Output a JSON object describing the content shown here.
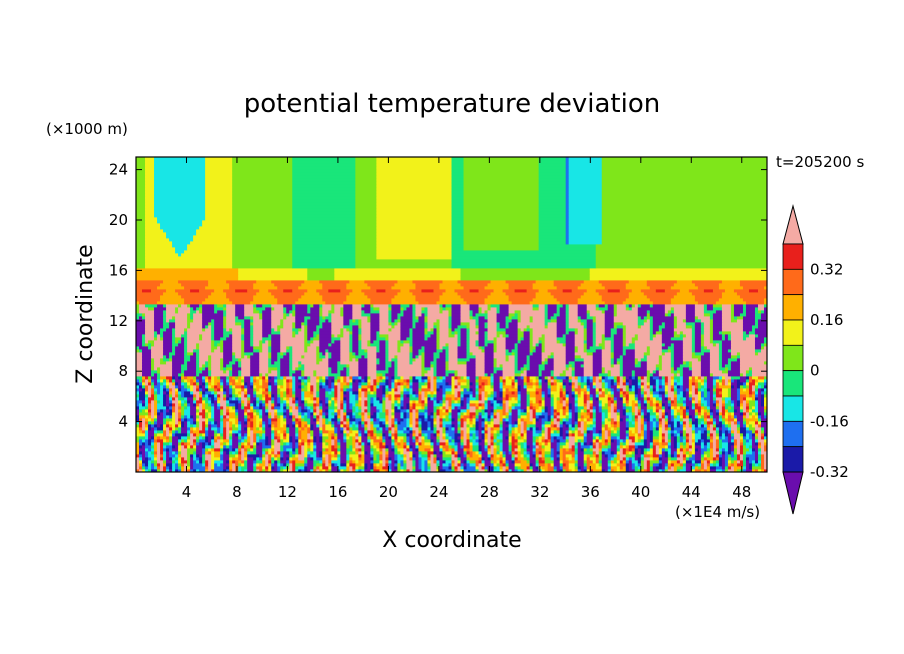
{
  "chart_data": {
    "type": "heatmap",
    "title": "potential temperature deviation",
    "xlabel": "X coordinate",
    "ylabel": "Z coordinate",
    "x_unit": "(×1E4 m/s)",
    "y_unit": "(×1000 m)",
    "time_label": "t=205200 s",
    "xlim": [
      0,
      50
    ],
    "ylim": [
      0,
      25
    ],
    "x_ticks": [
      4,
      8,
      12,
      16,
      20,
      24,
      28,
      32,
      36,
      40,
      44,
      48
    ],
    "y_ticks": [
      4,
      8,
      12,
      16,
      20,
      24
    ],
    "x_tick_labels": [
      "4",
      "8",
      "12",
      "16",
      "20",
      "24",
      "28",
      "32",
      "36",
      "40",
      "44",
      "48"
    ],
    "y_tick_labels": [
      "4",
      "8",
      "12",
      "16",
      "20",
      "24"
    ],
    "colorbar": {
      "levels": [
        -0.4,
        -0.32,
        -0.24,
        -0.16,
        -0.08,
        0,
        0.08,
        0.16,
        0.24,
        0.32,
        0.4
      ],
      "labeled_levels": [
        "0.32",
        "0.16",
        "0",
        "-0.16",
        "-0.32"
      ],
      "colors": [
        "#6a0dad",
        "#1a1aa8",
        "#1e6ff0",
        "#18e6e6",
        "#19e67a",
        "#7fe61a",
        "#f2f21a",
        "#ffb000",
        "#ff6a1a",
        "#e8201c",
        "#f4aaa4"
      ],
      "over_color": "#f4aaa4",
      "under_color": "#6a0dad"
    },
    "layers_description": [
      {
        "z_range": [
          0,
          8
        ],
        "pattern": "turbulent mixed values"
      },
      {
        "z_range": [
          8,
          13
        ],
        "pattern": "alternating high (pink) and low (purple)"
      },
      {
        "z_range": [
          13,
          15
        ],
        "pattern": "strong positive band (red/orange)"
      },
      {
        "z_range": [
          15,
          25
        ],
        "pattern": "near-zero values (green/yellow)"
      }
    ]
  }
}
